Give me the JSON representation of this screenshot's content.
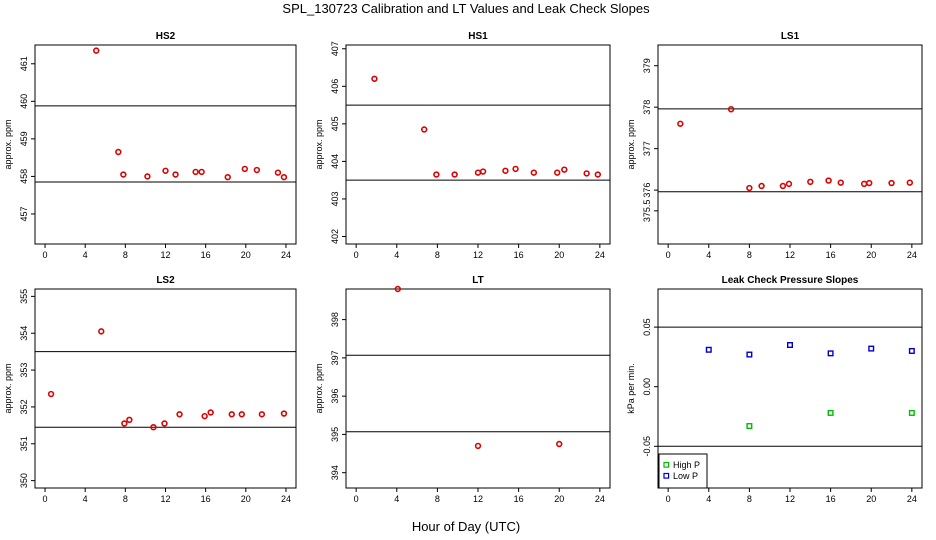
{
  "figure": {
    "title": "SPL_130723  Calibration and LT Values and Leak Check Slopes",
    "xlabel": "Hour of Day (UTC)"
  },
  "colors": {
    "cal_points": "#dd0000",
    "high_p": "#00bb00",
    "low_p": "#0000cc",
    "axes": "#000000"
  },
  "chart_data": [
    {
      "id": "hs2",
      "type": "scatter",
      "title": "HS2",
      "ylabel": "approx. ppm",
      "xlim": [
        -1,
        25
      ],
      "ylim": [
        456.2,
        461.5
      ],
      "xticks": [
        0,
        4,
        8,
        12,
        16,
        20,
        24
      ],
      "yticks": [
        457,
        458,
        459,
        460,
        461
      ],
      "hlines": [
        459.88,
        457.85
      ],
      "series": [
        {
          "name": "cal",
          "color": "#dd0000",
          "x": [
            5.1,
            7.3,
            7.8,
            10.2,
            12.0,
            13.0,
            15.0,
            15.6,
            18.2,
            19.9,
            21.1,
            23.2,
            23.8
          ],
          "y": [
            461.35,
            458.65,
            458.05,
            458.0,
            458.15,
            458.05,
            458.12,
            458.12,
            457.98,
            458.2,
            458.17,
            458.1,
            457.98
          ]
        }
      ]
    },
    {
      "id": "hs1",
      "type": "scatter",
      "title": "HS1",
      "ylabel": "approx. ppm",
      "xlim": [
        -1,
        25
      ],
      "ylim": [
        401.8,
        407.1
      ],
      "xticks": [
        0,
        4,
        8,
        12,
        16,
        20,
        24
      ],
      "yticks": [
        402,
        403,
        404,
        405,
        406,
        407
      ],
      "hlines": [
        405.5,
        403.5
      ],
      "series": [
        {
          "name": "cal",
          "color": "#dd0000",
          "x": [
            1.8,
            6.7,
            7.9,
            9.7,
            12.0,
            12.5,
            14.7,
            15.7,
            17.5,
            19.8,
            20.5,
            22.7,
            23.8
          ],
          "y": [
            406.2,
            404.85,
            403.65,
            403.65,
            403.7,
            403.73,
            403.75,
            403.8,
            403.7,
            403.7,
            403.78,
            403.68,
            403.65
          ]
        }
      ]
    },
    {
      "id": "ls1",
      "type": "scatter",
      "title": "LS1",
      "ylabel": "approx. ppm",
      "xlim": [
        -1,
        25
      ],
      "ylim": [
        374.7,
        379.5
      ],
      "xticks": [
        0,
        4,
        8,
        12,
        16,
        20,
        24
      ],
      "yticks": [
        375.5,
        376,
        377,
        378,
        379
      ],
      "hlines": [
        377.96,
        375.96
      ],
      "series": [
        {
          "name": "cal",
          "color": "#dd0000",
          "x": [
            1.2,
            6.2,
            8.0,
            9.2,
            11.3,
            11.9,
            14.0,
            15.8,
            17.0,
            19.3,
            19.8,
            22.0,
            23.8
          ],
          "y": [
            377.6,
            377.95,
            376.05,
            376.1,
            376.1,
            376.15,
            376.2,
            376.23,
            376.18,
            376.15,
            376.17,
            376.17,
            376.18
          ]
        }
      ]
    },
    {
      "id": "ls2",
      "type": "scatter",
      "title": "LS2",
      "ylabel": "approx. ppm",
      "xlim": [
        -1,
        25
      ],
      "ylim": [
        349.8,
        355.2
      ],
      "xticks": [
        0,
        4,
        8,
        12,
        16,
        20,
        24
      ],
      "yticks": [
        350,
        351,
        352,
        353,
        354,
        355
      ],
      "hlines": [
        353.5,
        351.45
      ],
      "series": [
        {
          "name": "cal",
          "color": "#dd0000",
          "x": [
            0.6,
            5.6,
            7.9,
            8.4,
            10.8,
            11.9,
            13.4,
            15.9,
            16.5,
            18.6,
            19.6,
            21.6,
            23.8
          ],
          "y": [
            352.35,
            354.05,
            351.55,
            351.65,
            351.45,
            351.55,
            351.8,
            351.75,
            351.85,
            351.8,
            351.8,
            351.8,
            351.82
          ]
        }
      ]
    },
    {
      "id": "lt",
      "type": "scatter",
      "title": "LT",
      "ylabel": "approx. ppm",
      "xlim": [
        -1,
        25
      ],
      "ylim": [
        393.6,
        398.8
      ],
      "xticks": [
        0,
        4,
        8,
        12,
        16,
        20,
        24
      ],
      "yticks": [
        394,
        395,
        396,
        397,
        398
      ],
      "hlines": [
        397.07,
        395.07
      ],
      "series": [
        {
          "name": "cal",
          "color": "#dd0000",
          "x": [
            4.1,
            12.0,
            20.0
          ],
          "y": [
            398.8,
            394.7,
            394.75
          ]
        }
      ]
    },
    {
      "id": "leak",
      "type": "scatter",
      "title": "Leak Check Pressure Slopes",
      "ylabel": "kPa per min.",
      "xlim": [
        -1,
        25
      ],
      "ylim": [
        -0.085,
        0.082
      ],
      "xticks": [
        0,
        4,
        8,
        12,
        16,
        20,
        24
      ],
      "yticks": [
        -0.05,
        0.0,
        0.05
      ],
      "ytick_labels": [
        "-0.05",
        "0.00",
        "0.05"
      ],
      "hlines": [
        0.05,
        -0.05
      ],
      "legend": {
        "position": "bottom-left",
        "entries": [
          "High P",
          "Low P"
        ]
      },
      "series": [
        {
          "name": "High P",
          "color": "#00bb00",
          "x": [
            8,
            16,
            24
          ],
          "y": [
            -0.033,
            -0.022,
            -0.022
          ]
        },
        {
          "name": "Low P",
          "color": "#0000cc",
          "x": [
            4,
            8,
            12,
            16,
            20,
            24
          ],
          "y": [
            0.031,
            0.027,
            0.035,
            0.028,
            0.032,
            0.03
          ]
        }
      ]
    }
  ]
}
